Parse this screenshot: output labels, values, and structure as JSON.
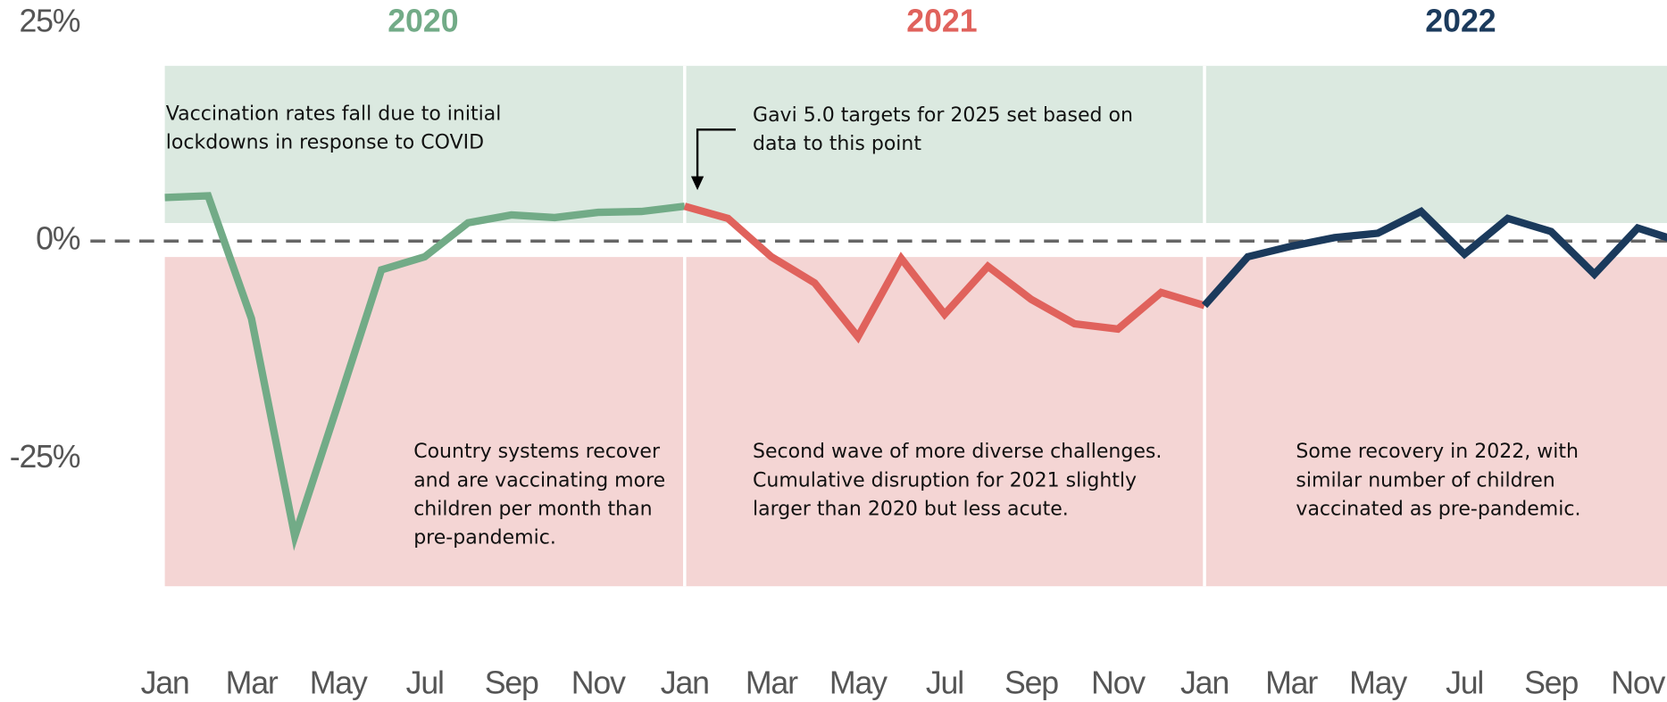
{
  "chart_data": {
    "type": "line",
    "categories": [
      "Jan",
      null,
      "Mar",
      null,
      "May",
      null,
      "Jul",
      null,
      "Sep",
      null,
      "Nov",
      null,
      "Jan",
      null,
      "Mar",
      null,
      "May",
      null,
      "Jul",
      null,
      "Sep",
      null,
      "Nov",
      null,
      "Jan",
      null,
      "Mar",
      null,
      "May",
      null,
      "Jul",
      null,
      "Sep",
      null,
      "Nov",
      null
    ],
    "series": [
      {
        "name": "2020",
        "color": "#72ab87",
        "values": [
          5.0,
          5.2,
          -8.9,
          -33.9,
          -18.7,
          -3.3,
          -1.8,
          2.1,
          3.0,
          2.7,
          3.3,
          3.4,
          4.0,
          null,
          null,
          null,
          null,
          null,
          null,
          null,
          null,
          null,
          null,
          null,
          null,
          null,
          null,
          null,
          null,
          null,
          null,
          null,
          null,
          null,
          null,
          null
        ]
      },
      {
        "name": "2021",
        "color": "#e0625c",
        "values": [
          null,
          null,
          null,
          null,
          null,
          null,
          null,
          null,
          null,
          null,
          null,
          null,
          4.0,
          2.6,
          -1.8,
          -4.8,
          -11.0,
          -2.0,
          -8.4,
          -2.9,
          -6.7,
          -9.5,
          -10.1,
          -5.9,
          -7.4,
          null,
          null,
          null,
          null,
          null,
          null,
          null,
          null,
          null,
          null,
          null
        ]
      },
      {
        "name": "2022",
        "color": "#1b3a5c",
        "values": [
          null,
          null,
          null,
          null,
          null,
          null,
          null,
          null,
          null,
          null,
          null,
          null,
          null,
          null,
          null,
          null,
          null,
          null,
          null,
          null,
          null,
          null,
          null,
          null,
          -7.4,
          -1.8,
          -0.6,
          0.4,
          0.9,
          3.4,
          -1.5,
          2.6,
          1.1,
          -3.8,
          1.5,
          -0.1
        ]
      }
    ],
    "ylim": [
      -40,
      25
    ],
    "yticks": [
      {
        "value": 25,
        "label": "25%"
      },
      {
        "value": 0,
        "label": "0%"
      },
      {
        "value": -25,
        "label": "-25%"
      }
    ],
    "annotations": [
      {
        "lines": [
          "Vaccination rates fall due to initial",
          "lockdowns in response to COVID"
        ]
      },
      {
        "lines": [
          "Gavi 5.0 targets for 2025 set based on",
          "data to this point"
        ]
      },
      {
        "lines": [
          "Country systems recover",
          "and are vaccinating more",
          "children per month than",
          "pre-pandemic."
        ]
      },
      {
        "lines": [
          "Second wave of more diverse challenges.",
          "Cumulative disruption for 2021 slightly",
          "larger than 2020 but less acute."
        ]
      },
      {
        "lines": [
          "Some recovery in 2022, with",
          "similar number of children",
          "vaccinated as pre-pandemic."
        ]
      }
    ]
  }
}
